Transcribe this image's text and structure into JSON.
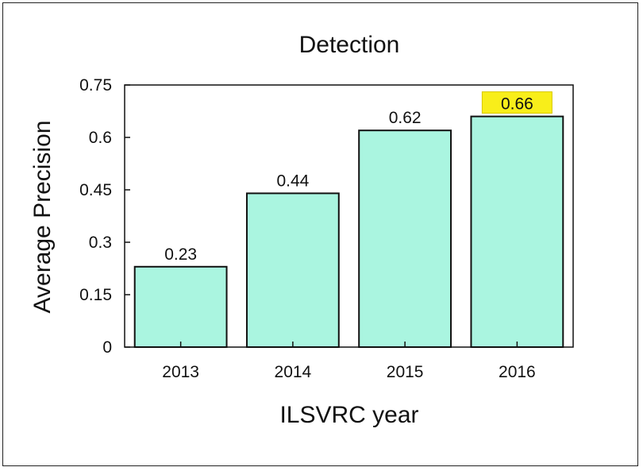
{
  "chart_data": {
    "type": "bar",
    "title": "Detection",
    "xlabel": "ILSVRC year",
    "ylabel": "Average Precision",
    "categories": [
      "2013",
      "2014",
      "2015",
      "2016"
    ],
    "values": [
      0.23,
      0.44,
      0.62,
      0.66
    ],
    "value_labels": [
      "0.23",
      "0.44",
      "0.62",
      "0.66"
    ],
    "highlighted_index": 3,
    "ylim": [
      0,
      0.75
    ],
    "yticks": [
      0,
      0.15,
      0.3,
      0.45,
      0.6,
      0.75
    ],
    "ytick_labels": [
      "0",
      "0.15",
      "0.3",
      "0.45",
      "0.6",
      "0.75"
    ],
    "grid": false,
    "legend": "none",
    "colors": {
      "bar_fill": "#aaf5e0",
      "bar_stroke": "#111111",
      "highlight": "#f8ee1a"
    }
  }
}
